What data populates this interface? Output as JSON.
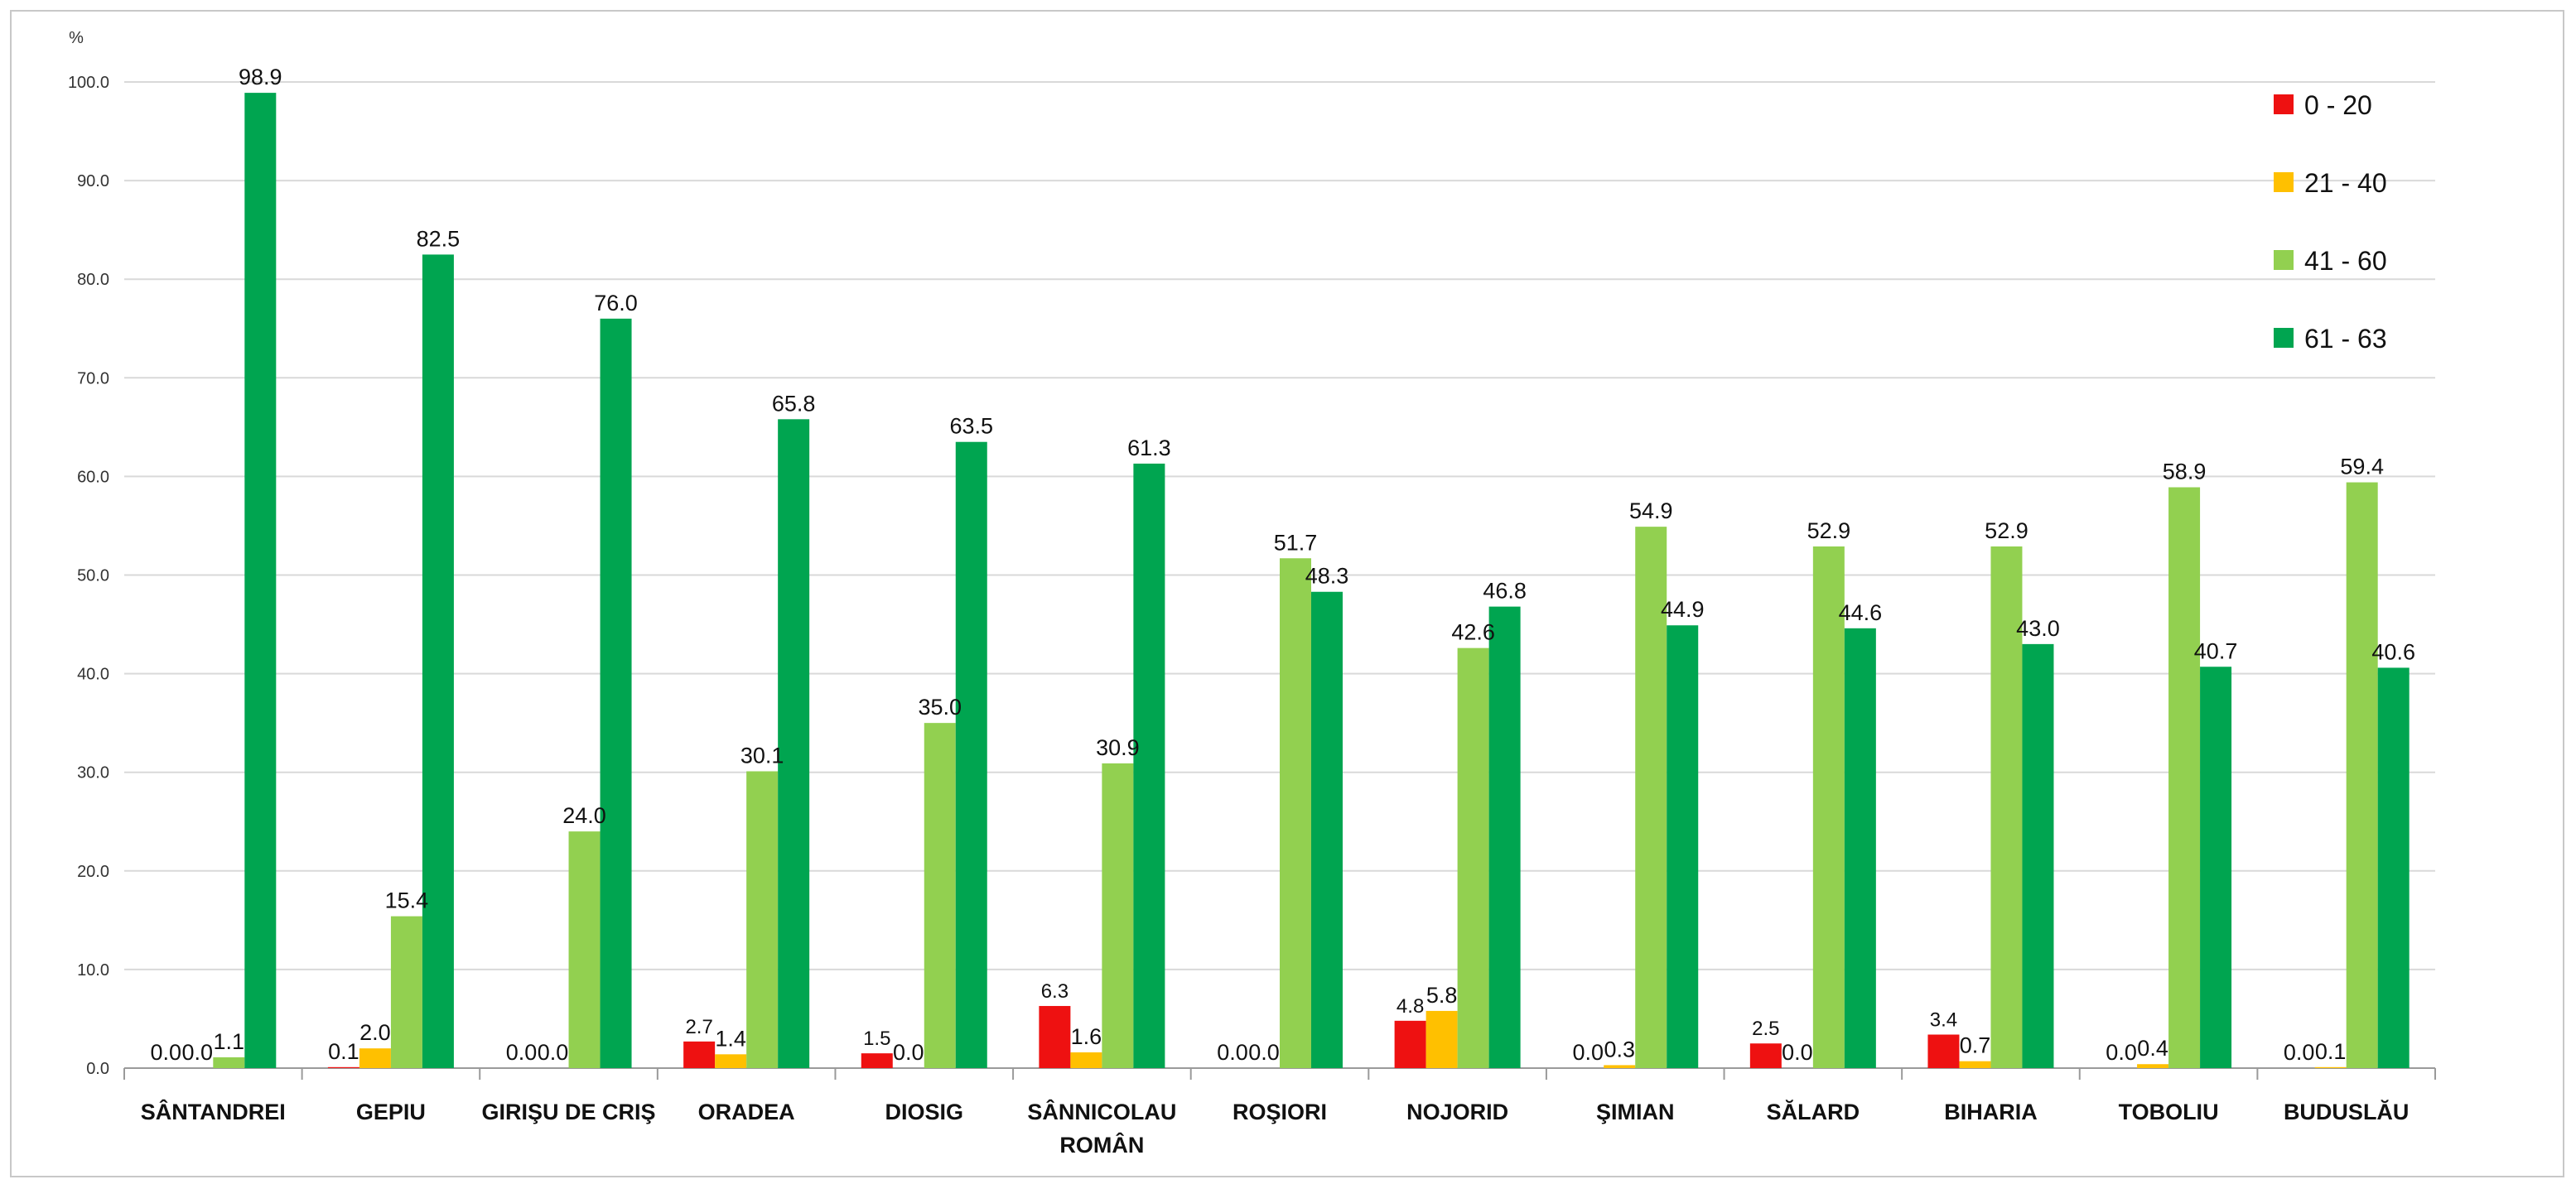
{
  "chart_data": {
    "type": "bar",
    "unit_label": "%",
    "ylim": [
      0,
      100
    ],
    "y_ticks": [
      "0.0",
      "10.0",
      "20.0",
      "30.0",
      "40.0",
      "50.0",
      "60.0",
      "70.0",
      "80.0",
      "90.0",
      "100.0"
    ],
    "grid": true,
    "legend_position": "top-right",
    "categories": [
      [
        "SÂNTANDREI"
      ],
      [
        "GEPIU"
      ],
      [
        "GIRIŞU DE CRIŞ"
      ],
      [
        "ORADEA"
      ],
      [
        "DIOSIG"
      ],
      [
        "SÂNNICOLAU",
        "ROMÂN"
      ],
      [
        "ROŞIORI"
      ],
      [
        "NOJORID"
      ],
      [
        "ŞIMIAN"
      ],
      [
        "SĂLARD"
      ],
      [
        "BIHARIA"
      ],
      [
        "TOBOLIU"
      ],
      [
        "BUDUSLĂU"
      ]
    ],
    "series": [
      {
        "name": "0 - 20",
        "color": "#ee1111",
        "values": [
          0.0,
          0.1,
          0.0,
          2.7,
          1.5,
          6.3,
          0.0,
          4.8,
          0.0,
          2.5,
          3.4,
          0.0,
          0.0
        ]
      },
      {
        "name": "21 - 40",
        "color": "#ffc000",
        "values": [
          0.0,
          2.0,
          0.0,
          1.4,
          0.0,
          1.6,
          0.0,
          5.8,
          0.3,
          0.0,
          0.7,
          0.4,
          0.1
        ]
      },
      {
        "name": "41 - 60",
        "color": "#92d050",
        "values": [
          1.1,
          15.4,
          24.0,
          30.1,
          35.0,
          30.9,
          51.7,
          42.6,
          54.9,
          52.9,
          52.9,
          58.9,
          59.4
        ]
      },
      {
        "name": "61 - 63",
        "color": "#00a550",
        "values": [
          98.9,
          82.5,
          76.0,
          65.8,
          63.5,
          61.3,
          48.3,
          46.8,
          44.9,
          44.6,
          43.0,
          40.7,
          40.6
        ]
      }
    ]
  }
}
